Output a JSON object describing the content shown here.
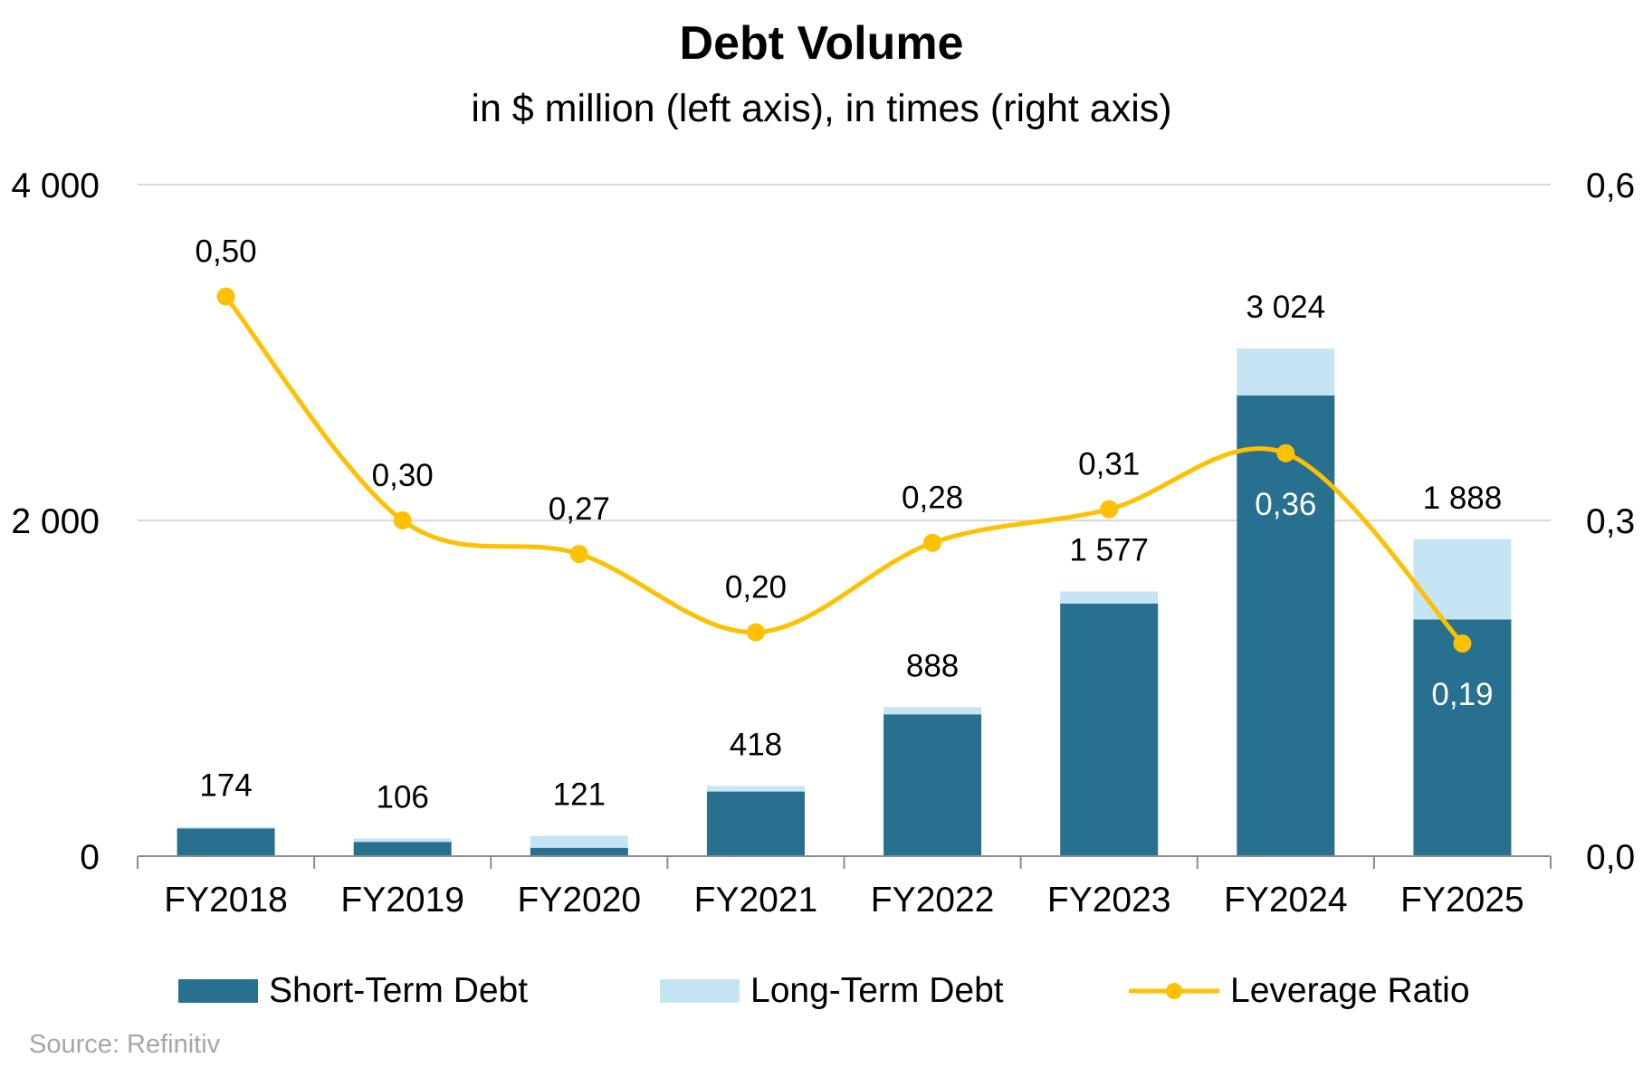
{
  "chart_data": {
    "type": "bar",
    "title": "Debt Volume",
    "subtitle": "in $ million (left axis), in times (right axis)",
    "categories": [
      "FY2018",
      "FY2019",
      "FY2020",
      "FY2021",
      "FY2022",
      "FY2023",
      "FY2024",
      "FY2025"
    ],
    "series": [
      {
        "name": "Short-Term Debt",
        "type": "bar",
        "stack": "debt",
        "axis": "left",
        "color": "#27708F",
        "values": [
          165,
          85,
          50,
          385,
          845,
          1505,
          2745,
          1410
        ]
      },
      {
        "name": "Long-Term Debt",
        "type": "bar",
        "stack": "debt",
        "axis": "left",
        "color": "#C5E5F4",
        "values": [
          9,
          21,
          71,
          33,
          43,
          72,
          279,
          478
        ]
      },
      {
        "name": "Leverage Ratio",
        "type": "line",
        "axis": "right",
        "color": "#FFC000",
        "values": [
          0.5,
          0.3,
          0.27,
          0.2,
          0.28,
          0.31,
          0.36,
          0.19
        ]
      }
    ],
    "total_labels": [
      "174",
      "106",
      "121",
      "418",
      "888",
      "1 577",
      "3 024",
      "1 888"
    ],
    "ratio_labels": [
      "0,50",
      "0,30",
      "0,27",
      "0,20",
      "0,28",
      "0,31",
      "0,36",
      "0,19"
    ],
    "left_axis": {
      "min": 0,
      "max": 4000,
      "ticks": [
        0,
        2000,
        4000
      ],
      "tick_labels": [
        "0",
        "2 000",
        "4 000"
      ]
    },
    "right_axis": {
      "min": 0,
      "max": 0.6,
      "ticks": [
        0,
        0.3,
        0.6
      ],
      "tick_labels": [
        "0,0",
        "0,3",
        "0,6"
      ]
    },
    "grid": true,
    "legend_position": "bottom"
  },
  "legend": {
    "short_term": "Short-Term Debt",
    "long_term": "Long-Term Debt",
    "leverage": "Leverage Ratio"
  },
  "source": "Source: Refinitiv"
}
